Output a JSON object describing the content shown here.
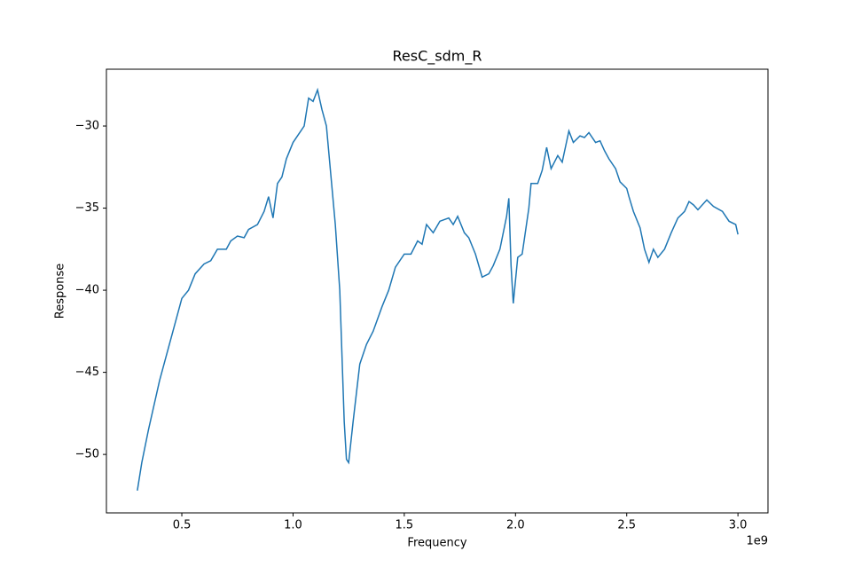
{
  "chart_data": {
    "type": "line",
    "title": "ResC_sdm_R",
    "x_label": "Frequency",
    "y_label": "Response",
    "x_offset_label": "1e9",
    "x": [
      300000000,
      320000000,
      350000000,
      400000000,
      450000000,
      500000000,
      530000000,
      560000000,
      600000000,
      630000000,
      660000000,
      700000000,
      720000000,
      750000000,
      780000000,
      800000000,
      840000000,
      870000000,
      890000000,
      910000000,
      930000000,
      950000000,
      970000000,
      1000000000,
      1030000000,
      1050000000,
      1070000000,
      1090000000,
      1110000000,
      1130000000,
      1150000000,
      1170000000,
      1190000000,
      1210000000,
      1230000000,
      1240000000,
      1250000000,
      1270000000,
      1300000000,
      1330000000,
      1360000000,
      1400000000,
      1430000000,
      1460000000,
      1500000000,
      1530000000,
      1560000000,
      1580000000,
      1600000000,
      1630000000,
      1660000000,
      1700000000,
      1720000000,
      1740000000,
      1770000000,
      1790000000,
      1820000000,
      1850000000,
      1880000000,
      1900000000,
      1930000000,
      1960000000,
      1970000000,
      1980000000,
      1990000000,
      2010000000,
      2030000000,
      2060000000,
      2070000000,
      2100000000,
      2120000000,
      2140000000,
      2160000000,
      2190000000,
      2210000000,
      2240000000,
      2260000000,
      2290000000,
      2310000000,
      2330000000,
      2360000000,
      2380000000,
      2400000000,
      2420000000,
      2450000000,
      2470000000,
      2500000000,
      2510000000,
      2530000000,
      2560000000,
      2580000000,
      2600000000,
      2620000000,
      2640000000,
      2670000000,
      2700000000,
      2730000000,
      2760000000,
      2780000000,
      2800000000,
      2820000000,
      2860000000,
      2890000000,
      2930000000,
      2960000000,
      2990000000,
      3000000000
    ],
    "series": [
      {
        "color": "#1f77b4",
        "values": [
          -52.2,
          -50.5,
          -48.5,
          -45.5,
          -43,
          -40.5,
          -40,
          -39,
          -38.4,
          -38.2,
          -37.5,
          -37.5,
          -37,
          -36.7,
          -36.8,
          -36.3,
          -36,
          -35.2,
          -34.3,
          -35.6,
          -33.5,
          -33.1,
          -32,
          -31,
          -30.4,
          -30,
          -28.3,
          -28.5,
          -27.8,
          -29,
          -30,
          -33,
          -36,
          -40,
          -48,
          -50.3,
          -50.5,
          -48,
          -44.5,
          -43.3,
          -42.5,
          -41,
          -40,
          -38.6,
          -37.8,
          -37.8,
          -37,
          -37.2,
          -36,
          -36.5,
          -35.8,
          -35.6,
          -36,
          -35.5,
          -36.5,
          -36.8,
          -37.8,
          -39.2,
          -39,
          -38.5,
          -37.5,
          -35.5,
          -34.4,
          -38.5,
          -40.8,
          -38,
          -37.8,
          -35,
          -33.5,
          -33.5,
          -32.7,
          -31.3,
          -32.6,
          -31.8,
          -32.2,
          -30.3,
          -31,
          -30.6,
          -30.7,
          -30.4,
          -31,
          -30.9,
          -31.5,
          -32,
          -32.6,
          -33.4,
          -33.8,
          -34.3,
          -35.2,
          -36.2,
          -37.5,
          -38.3,
          -37.5,
          -38,
          -37.5,
          -36.5,
          -35.6,
          -35.2,
          -34.6,
          -34.8,
          -35.1,
          -34.5,
          -34.9,
          -35.2,
          -35.8,
          -36,
          -36.6
        ]
      }
    ],
    "xlim": [
      161000000,
      3135000000
    ],
    "ylim": [
      -53.56,
      -26.54
    ],
    "xticks": [
      {
        "value": 500000000,
        "label": "0.5"
      },
      {
        "value": 1000000000,
        "label": "1.0"
      },
      {
        "value": 1500000000,
        "label": "1.5"
      },
      {
        "value": 2000000000,
        "label": "2.0"
      },
      {
        "value": 2500000000,
        "label": "2.5"
      },
      {
        "value": 3000000000,
        "label": "3.0"
      }
    ],
    "yticks": [
      {
        "value": -50,
        "label": "−50"
      },
      {
        "value": -45,
        "label": "−45"
      },
      {
        "value": -40,
        "label": "−40"
      },
      {
        "value": -35,
        "label": "−35"
      },
      {
        "value": -30,
        "label": "−30"
      }
    ]
  }
}
